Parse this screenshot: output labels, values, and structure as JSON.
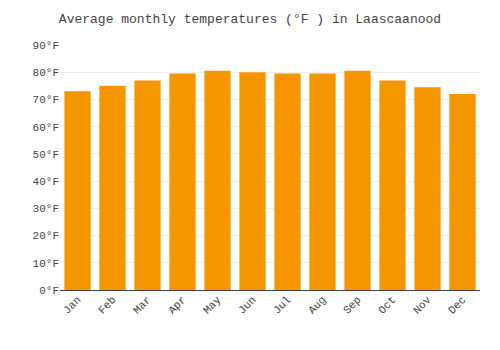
{
  "chart_data": {
    "type": "bar",
    "title": "Average monthly temperatures (°F ) in Laascaanood",
    "categories": [
      "Jan",
      "Feb",
      "Mar",
      "Apr",
      "May",
      "Jun",
      "Jul",
      "Aug",
      "Sep",
      "Oct",
      "Nov",
      "Dec"
    ],
    "values": [
      73,
      75,
      77,
      79.5,
      80.5,
      80,
      79.5,
      79.5,
      80.5,
      77,
      74.5,
      72
    ],
    "color": "#F59600",
    "ylim": [
      0,
      90
    ],
    "yticks": [
      {
        "value": 0,
        "label": "0°F"
      },
      {
        "value": 10,
        "label": "10°F"
      },
      {
        "value": 20,
        "label": "20°F"
      },
      {
        "value": 30,
        "label": "30°F"
      },
      {
        "value": 40,
        "label": "40°F"
      },
      {
        "value": 50,
        "label": "50°F"
      },
      {
        "value": 60,
        "label": "60°F"
      },
      {
        "value": 70,
        "label": "70°F"
      },
      {
        "value": 80,
        "label": "80°F"
      },
      {
        "value": 90,
        "label": "90°F"
      }
    ],
    "grid": true
  }
}
